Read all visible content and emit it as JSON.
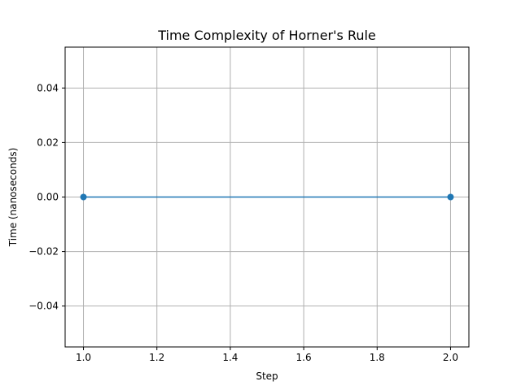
{
  "chart_data": {
    "type": "line",
    "title": "Time Complexity of Horner's Rule",
    "xlabel": "Step",
    "ylabel": "Time (nanoseconds)",
    "x": [
      1.0,
      2.0
    ],
    "series": [
      {
        "values": [
          0.0,
          0.0
        ],
        "color": "#1f77b4",
        "marker": "circle"
      }
    ],
    "xlim": [
      0.95,
      2.05
    ],
    "ylim": [
      -0.055,
      0.055
    ],
    "xticks": [
      1.0,
      1.2,
      1.4,
      1.6,
      1.8,
      2.0
    ],
    "xtick_labels": [
      "1.0",
      "1.2",
      "1.4",
      "1.6",
      "1.8",
      "2.0"
    ],
    "yticks": [
      -0.04,
      -0.02,
      0.0,
      0.02,
      0.04
    ],
    "ytick_labels": [
      "−0.04",
      "−0.02",
      "0.00",
      "0.02",
      "0.04"
    ],
    "grid": true,
    "legend": false
  }
}
